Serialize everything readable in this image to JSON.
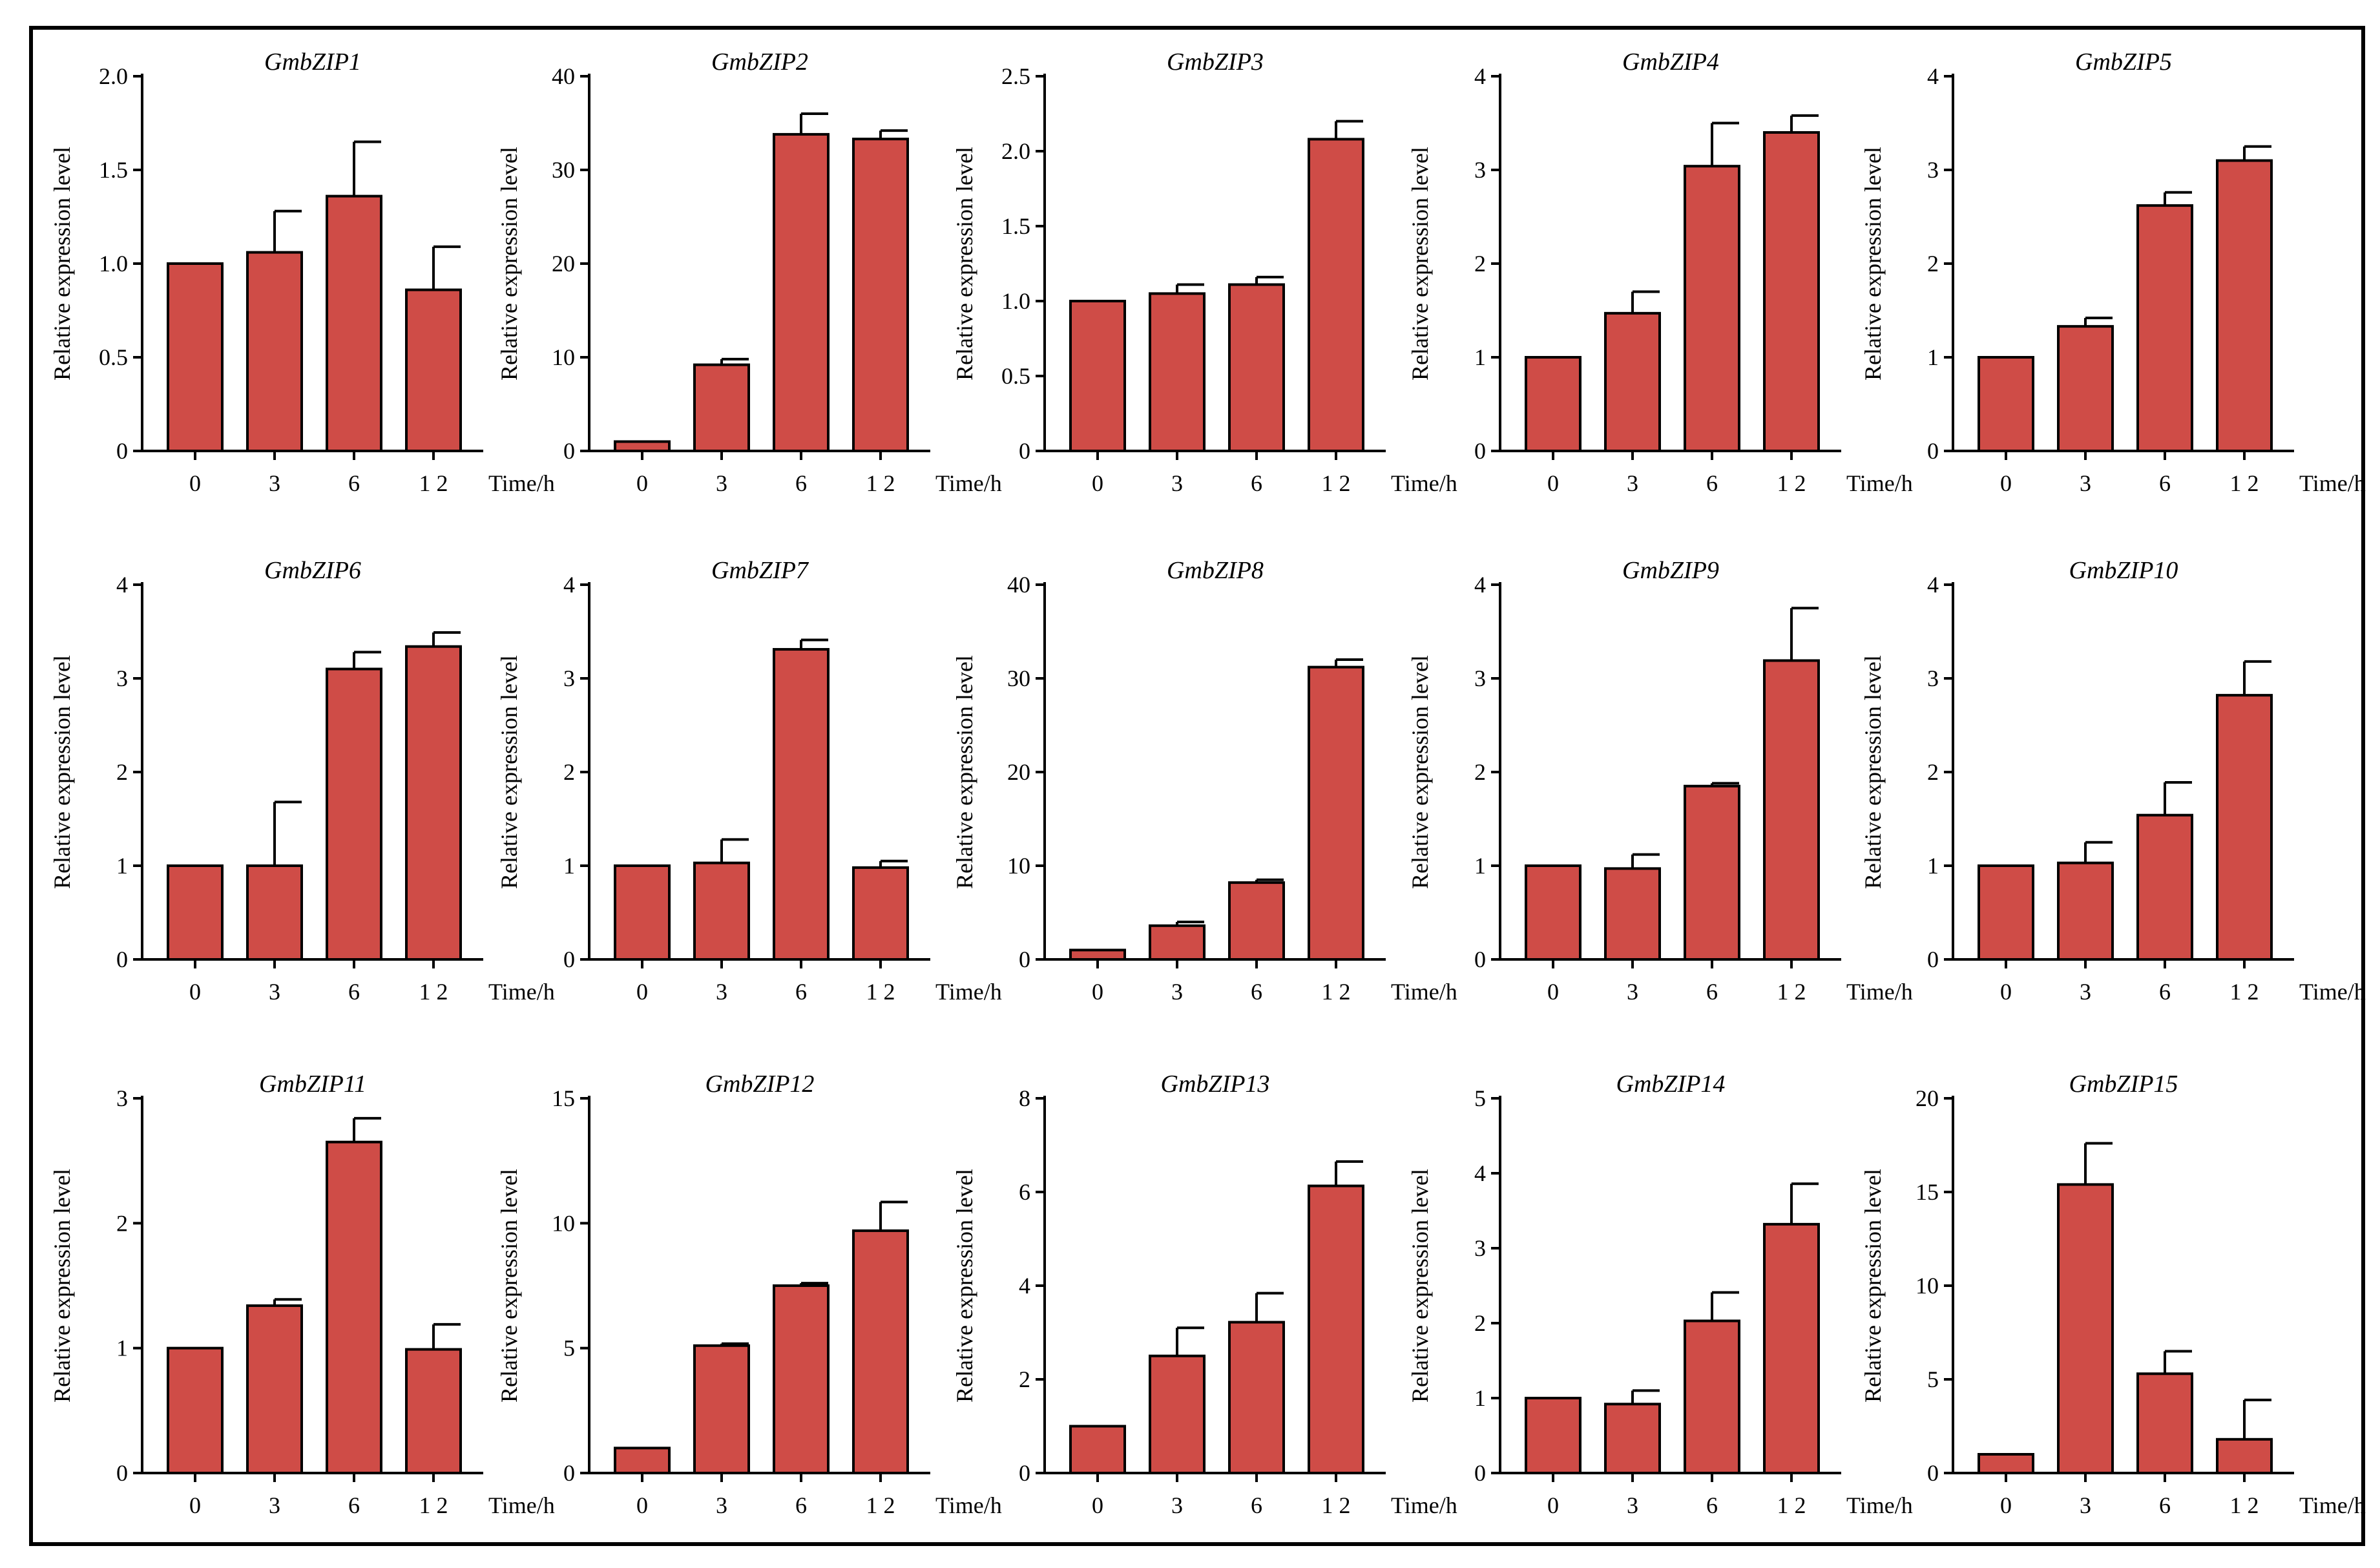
{
  "figure": {
    "bar_color": "#cf4c47",
    "bar_stroke": "#000000",
    "frame_color": "#000000"
  },
  "chart_data": [
    {
      "type": "bar",
      "title": "GmbZIP1",
      "categories": [
        "0",
        "3",
        "6",
        "1 2"
      ],
      "values": [
        1.0,
        1.06,
        1.36,
        0.86
      ],
      "errors": [
        0,
        0.22,
        0.29,
        0.23
      ],
      "ylim": [
        0,
        2.0
      ],
      "yticks": [
        "0",
        "0.5",
        "1.0",
        "1.5",
        "2.0"
      ],
      "ytick_values": [
        0,
        0.5,
        1.0,
        1.5,
        2.0
      ],
      "ylabel": "Relative expression level",
      "xlabel": "Time/h"
    },
    {
      "type": "bar",
      "title": "GmbZIP2",
      "categories": [
        "0",
        "3",
        "6",
        "1 2"
      ],
      "values": [
        1.0,
        9.2,
        33.8,
        33.3
      ],
      "errors": [
        0,
        0.6,
        2.2,
        0.9
      ],
      "ylim": [
        0,
        40
      ],
      "yticks": [
        "0",
        "10",
        "20",
        "30",
        "40"
      ],
      "ytick_values": [
        0,
        10,
        20,
        30,
        40
      ],
      "ylabel": "Relative expression level",
      "xlabel": "Time/h"
    },
    {
      "type": "bar",
      "title": "GmbZIP3",
      "categories": [
        "0",
        "3",
        "6",
        "1 2"
      ],
      "values": [
        1.0,
        1.05,
        1.11,
        2.08
      ],
      "errors": [
        0,
        0.06,
        0.05,
        0.12
      ],
      "ylim": [
        0,
        2.5
      ],
      "yticks": [
        "0",
        "0.5",
        "1.0",
        "1.5",
        "2.0",
        "2.5"
      ],
      "ytick_values": [
        0,
        0.5,
        1.0,
        1.5,
        2.0,
        2.5
      ],
      "ylabel": "Relative expression level",
      "xlabel": "Time/h"
    },
    {
      "type": "bar",
      "title": "GmbZIP4",
      "categories": [
        "0",
        "3",
        "6",
        "1 2"
      ],
      "values": [
        1.0,
        1.47,
        3.04,
        3.4
      ],
      "errors": [
        0,
        0.23,
        0.46,
        0.18
      ],
      "ylim": [
        0,
        4
      ],
      "yticks": [
        "0",
        "1",
        "2",
        "3",
        "4"
      ],
      "ytick_values": [
        0,
        1,
        2,
        3,
        4
      ],
      "ylabel": "Relative expression level",
      "xlabel": "Time/h"
    },
    {
      "type": "bar",
      "title": "GmbZIP5",
      "categories": [
        "0",
        "3",
        "6",
        "1 2"
      ],
      "values": [
        1.0,
        1.33,
        2.62,
        3.1
      ],
      "errors": [
        0,
        0.09,
        0.14,
        0.15
      ],
      "ylim": [
        0,
        4
      ],
      "yticks": [
        "0",
        "1",
        "2",
        "3",
        "4"
      ],
      "ytick_values": [
        0,
        1,
        2,
        3,
        4
      ],
      "ylabel": "Relative expression level",
      "xlabel": "Time/h"
    },
    {
      "type": "bar",
      "title": "GmbZIP6",
      "categories": [
        "0",
        "3",
        "6",
        "1 2"
      ],
      "values": [
        1.0,
        1.0,
        3.1,
        3.34
      ],
      "errors": [
        0,
        0.68,
        0.18,
        0.15
      ],
      "ylim": [
        0,
        4
      ],
      "yticks": [
        "0",
        "1",
        "2",
        "3",
        "4"
      ],
      "ytick_values": [
        0,
        1,
        2,
        3,
        4
      ],
      "ylabel": "Relative expression level",
      "xlabel": "Time/h"
    },
    {
      "type": "bar",
      "title": "GmbZIP7",
      "categories": [
        "0",
        "3",
        "6",
        "1 2"
      ],
      "values": [
        1.0,
        1.03,
        3.31,
        0.98
      ],
      "errors": [
        0,
        0.25,
        0.1,
        0.07
      ],
      "ylim": [
        0,
        4
      ],
      "yticks": [
        "0",
        "1",
        "2",
        "3",
        "4"
      ],
      "ytick_values": [
        0,
        1,
        2,
        3,
        4
      ],
      "ylabel": "Relative expression level",
      "xlabel": "Time/h"
    },
    {
      "type": "bar",
      "title": "GmbZIP8",
      "categories": [
        "0",
        "3",
        "6",
        "1 2"
      ],
      "values": [
        1.0,
        3.6,
        8.2,
        31.2
      ],
      "errors": [
        0,
        0.4,
        0.3,
        0.8
      ],
      "ylim": [
        0,
        40
      ],
      "yticks": [
        "0",
        "10",
        "20",
        "30",
        "40"
      ],
      "ytick_values": [
        0,
        10,
        20,
        30,
        40
      ],
      "ylabel": "Relative expression level",
      "xlabel": "Time/h"
    },
    {
      "type": "bar",
      "title": "GmbZIP9",
      "categories": [
        "0",
        "3",
        "6",
        "1 2"
      ],
      "values": [
        1.0,
        0.97,
        1.85,
        3.19
      ],
      "errors": [
        0,
        0.15,
        0.03,
        0.56
      ],
      "ylim": [
        0,
        4
      ],
      "yticks": [
        "0",
        "1",
        "2",
        "3",
        "4"
      ],
      "ytick_values": [
        0,
        1,
        2,
        3,
        4
      ],
      "ylabel": "Relative expression level",
      "xlabel": "Time/h"
    },
    {
      "type": "bar",
      "title": "GmbZIP10",
      "categories": [
        "0",
        "3",
        "6",
        "1 2"
      ],
      "values": [
        1.0,
        1.03,
        1.54,
        2.82
      ],
      "errors": [
        0,
        0.22,
        0.35,
        0.36
      ],
      "ylim": [
        0,
        4
      ],
      "yticks": [
        "0",
        "1",
        "2",
        "3",
        "4"
      ],
      "ytick_values": [
        0,
        1,
        2,
        3,
        4
      ],
      "ylabel": "Relative expression level",
      "xlabel": "Time/h"
    },
    {
      "type": "bar",
      "title": "GmbZIP11",
      "categories": [
        "0",
        "3",
        "6",
        "1 2"
      ],
      "values": [
        1.0,
        1.34,
        2.65,
        0.99
      ],
      "errors": [
        0,
        0.05,
        0.19,
        0.2
      ],
      "ylim": [
        0,
        3
      ],
      "yticks": [
        "0",
        "1",
        "2",
        "3"
      ],
      "ytick_values": [
        0,
        1,
        2,
        3
      ],
      "ylabel": "Relative expression level",
      "xlabel": "Time/h"
    },
    {
      "type": "bar",
      "title": "GmbZIP12",
      "categories": [
        "0",
        "3",
        "6",
        "1 2"
      ],
      "values": [
        1.0,
        5.1,
        7.5,
        9.7
      ],
      "errors": [
        0,
        0.08,
        0.1,
        1.15
      ],
      "ylim": [
        0,
        15
      ],
      "yticks": [
        "0",
        "5",
        "10",
        "15"
      ],
      "ytick_values": [
        0,
        5,
        10,
        15
      ],
      "ylabel": "Relative expression level",
      "xlabel": "Time/h"
    },
    {
      "type": "bar",
      "title": "GmbZIP13",
      "categories": [
        "0",
        "3",
        "6",
        "1 2"
      ],
      "values": [
        1.0,
        2.5,
        3.22,
        6.13
      ],
      "errors": [
        0,
        0.6,
        0.62,
        0.52
      ],
      "ylim": [
        0,
        8
      ],
      "yticks": [
        "0",
        "2",
        "4",
        "6",
        "8"
      ],
      "ytick_values": [
        0,
        2,
        4,
        6,
        8
      ],
      "ylabel": "Relative expression level",
      "xlabel": "Time/h"
    },
    {
      "type": "bar",
      "title": "GmbZIP14",
      "categories": [
        "0",
        "3",
        "6",
        "1 2"
      ],
      "values": [
        1.0,
        0.92,
        2.03,
        3.32
      ],
      "errors": [
        0,
        0.18,
        0.38,
        0.54
      ],
      "ylim": [
        0,
        5
      ],
      "yticks": [
        "0",
        "1",
        "2",
        "3",
        "4",
        "5"
      ],
      "ytick_values": [
        0,
        1,
        2,
        3,
        4,
        5
      ],
      "ylabel": "Relative expression level",
      "xlabel": "Time/h"
    },
    {
      "type": "bar",
      "title": "GmbZIP15",
      "categories": [
        "0",
        "3",
        "6",
        "1 2"
      ],
      "values": [
        1.0,
        15.4,
        5.3,
        1.8
      ],
      "errors": [
        0,
        2.2,
        1.2,
        2.1
      ],
      "ylim": [
        0,
        20
      ],
      "yticks": [
        "0",
        "5",
        "10",
        "15",
        "20"
      ],
      "ytick_values": [
        0,
        5,
        10,
        15,
        20
      ],
      "ylabel": "Relative expression level",
      "xlabel": "Time/h"
    }
  ]
}
